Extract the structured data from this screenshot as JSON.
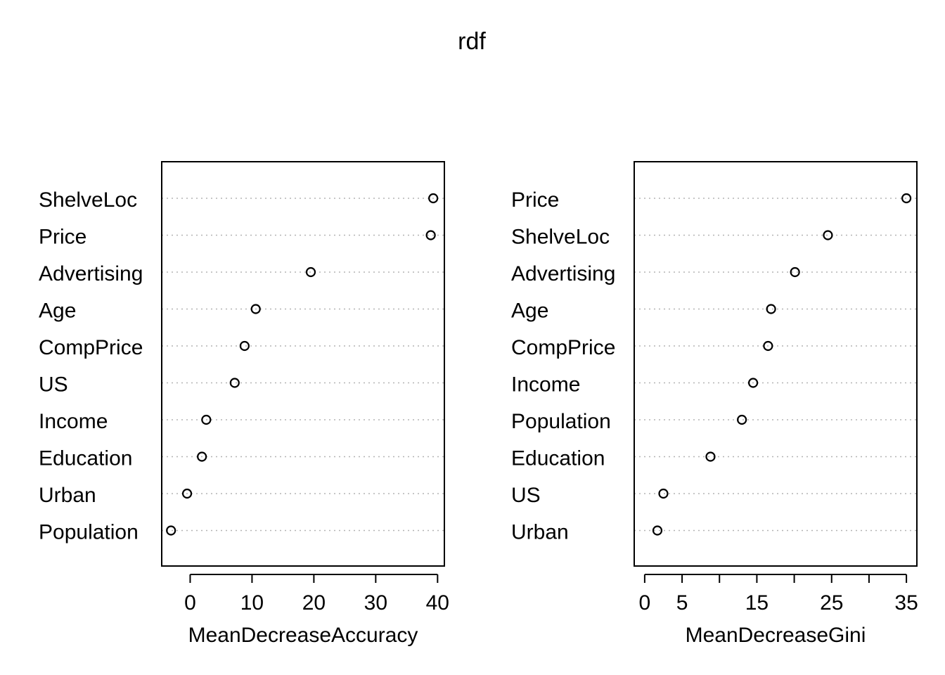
{
  "title": "rdf",
  "chart_data": [
    {
      "type": "scatter",
      "variant": "dotchart",
      "title": "",
      "xlabel": "MeanDecreaseAccuracy",
      "ylabel": "",
      "xlim": [
        -4.6,
        41.1
      ],
      "xticks": [
        0,
        10,
        20,
        30,
        40
      ],
      "grid": "dotted horizontal",
      "categories": [
        "ShelveLoc",
        "Price",
        "Advertising",
        "Age",
        "CompPrice",
        "US",
        "Income",
        "Education",
        "Urban",
        "Population"
      ],
      "values": [
        39.3,
        38.9,
        19.5,
        10.6,
        8.8,
        7.2,
        2.6,
        1.9,
        -0.5,
        -3.1
      ]
    },
    {
      "type": "scatter",
      "variant": "dotchart",
      "title": "",
      "xlabel": "MeanDecreaseGini",
      "ylabel": "",
      "xlim": [
        -1.4,
        36.4
      ],
      "xticks": [
        0,
        5,
        10,
        15,
        20,
        25,
        30,
        35
      ],
      "xticklabels": [
        "0",
        "5",
        "",
        "15",
        "",
        "25",
        "",
        "35"
      ],
      "grid": "dotted horizontal",
      "categories": [
        "Price",
        "ShelveLoc",
        "Advertising",
        "Age",
        "CompPrice",
        "Income",
        "Population",
        "Education",
        "US",
        "Urban"
      ],
      "values": [
        35.0,
        24.5,
        20.1,
        16.9,
        16.5,
        14.5,
        13.0,
        8.8,
        2.5,
        1.7
      ]
    }
  ]
}
